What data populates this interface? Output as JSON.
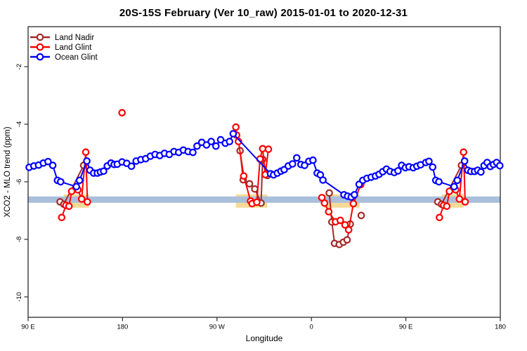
{
  "chart_data": {
    "type": "line",
    "title": "20S-15S February (Ver 10_raw)   2015-01-01 to 2020-12-31",
    "xlabel": "Longitude",
    "ylabel": "XCO2 - MLO trend (ppm)",
    "x_domain": [
      90,
      540
    ],
    "y_domain": [
      -0.61,
      -10.71
    ],
    "grid": false,
    "x_ticks": [
      {
        "value": 90,
        "label": "90 E"
      },
      {
        "value": 180,
        "label": "180"
      },
      {
        "value": 270,
        "label": "90 W"
      },
      {
        "value": 360,
        "label": "0"
      },
      {
        "value": 450,
        "label": "90 E"
      },
      {
        "value": 540,
        "label": "180"
      }
    ],
    "y_ticks": [
      {
        "value": -2,
        "label": "-2"
      },
      {
        "value": -4,
        "label": "-4"
      },
      {
        "value": -6,
        "label": "-6"
      },
      {
        "value": -8,
        "label": "-8"
      },
      {
        "value": -10,
        "label": "-10"
      }
    ],
    "reference_band": {
      "color": "#A9BFDC",
      "y_from": -6.51,
      "y_to": -6.73,
      "x_from": 90,
      "x_to": 540
    },
    "highlight_band": {
      "color": "#F6DB96",
      "y_from": -6.44,
      "y_to": -6.9,
      "segments": [
        [
          124,
          148
        ],
        [
          288,
          318
        ],
        [
          371,
          406
        ],
        [
          484,
          505
        ]
      ]
    },
    "legend": {
      "position": "top-left",
      "entries": [
        "Land Nadir",
        "Land Glint",
        "Ocean Glint"
      ]
    },
    "series": [
      {
        "name": "Land Nadir",
        "color": "#A52A2A",
        "segments": [
          [
            [
              120.5,
              -6.7
            ],
            [
              124,
              -6.78
            ],
            [
              143,
              -5.43
            ]
          ],
          [
            [
              292,
              -4.92
            ],
            [
              295,
              -5.93
            ],
            [
              301,
              -6.07
            ],
            [
              306,
              -6.25
            ],
            [
              312,
              -6.74
            ],
            [
              313.5,
              -5.22
            ],
            [
              318,
              -5.78
            ]
          ],
          [
            [
              377,
              -6.39
            ],
            [
              379.5,
              -7.4
            ],
            [
              382,
              -8.14
            ],
            [
              386.5,
              -8.18
            ],
            [
              390.5,
              -8.1
            ],
            [
              394,
              -8.02
            ],
            [
              397,
              -7.47
            ]
          ],
          [
            [
              407.5,
              -7.17
            ]
          ],
          [
            [
              480.5,
              -6.7
            ],
            [
              484,
              -6.78
            ],
            [
              503,
              -5.43
            ]
          ]
        ]
      },
      {
        "name": "Land Glint",
        "color": "#FF0000",
        "segments": [
          [
            [
              122,
              -7.24
            ],
            [
              126,
              -6.82
            ],
            [
              129,
              -6.85
            ],
            [
              131.5,
              -6.33
            ],
            [
              137.5,
              -6.28
            ],
            [
              141,
              -6.6
            ],
            [
              145,
              -4.97
            ],
            [
              146.5,
              -6.7
            ]
          ],
          [
            [
              179.5,
              -3.6
            ]
          ],
          [
            [
              288,
              -4.1
            ],
            [
              288.7,
              -4.38
            ],
            [
              290.5,
              -4.6
            ],
            [
              295.5,
              -5.8
            ],
            [
              302,
              -6.67
            ],
            [
              303.5,
              -6.76
            ],
            [
              308,
              -6.71
            ],
            [
              311,
              -5.21
            ],
            [
              313.5,
              -4.85
            ],
            [
              316,
              -5.75
            ],
            [
              319,
              -4.87
            ]
          ],
          [
            [
              370,
              -6.55
            ],
            [
              372.5,
              -6.74
            ],
            [
              376.5,
              -7.04
            ],
            [
              383,
              -7.39
            ],
            [
              387.5,
              -7.34
            ],
            [
              392,
              -7.5
            ],
            [
              395.5,
              -7.67
            ],
            [
              400,
              -6.76
            ],
            [
              407,
              -6.1
            ]
          ],
          [
            [
              482,
              -7.24
            ],
            [
              486,
              -6.82
            ],
            [
              489,
              -6.85
            ],
            [
              491.5,
              -6.33
            ],
            [
              497.5,
              -6.28
            ],
            [
              501,
              -6.6
            ],
            [
              505,
              -4.97
            ],
            [
              506.5,
              -6.7
            ]
          ]
        ]
      },
      {
        "name": "Ocean Glint",
        "color": "#0000FF",
        "segments": [
          [
            [
              91,
              -5.5
            ],
            [
              95.5,
              -5.45
            ],
            [
              100,
              -5.42
            ],
            [
              104.5,
              -5.35
            ],
            [
              109,
              -5.3
            ],
            [
              113.5,
              -5.43
            ],
            [
              118,
              -5.95
            ],
            [
              121,
              -6.0
            ],
            [
              136,
              -6.17
            ],
            [
              139,
              -5.95
            ],
            [
              146,
              -5.28
            ],
            [
              149,
              -5.6
            ],
            [
              152.5,
              -5.7
            ],
            [
              156,
              -5.7
            ],
            [
              159,
              -5.66
            ],
            [
              162,
              -5.63
            ],
            [
              165.5,
              -5.45
            ],
            [
              169,
              -5.35
            ],
            [
              172,
              -5.4
            ],
            [
              175,
              -5.39
            ],
            [
              179.5,
              -5.31
            ],
            [
              184,
              -5.36
            ],
            [
              188.5,
              -5.46
            ],
            [
              193,
              -5.28
            ],
            [
              197.5,
              -5.23
            ],
            [
              202,
              -5.2
            ],
            [
              206.5,
              -5.11
            ],
            [
              211,
              -5.05
            ],
            [
              215.5,
              -5.09
            ],
            [
              220,
              -5.01
            ],
            [
              224.5,
              -5.05
            ],
            [
              229,
              -4.95
            ],
            [
              233.5,
              -4.98
            ],
            [
              238,
              -4.9
            ],
            [
              242.5,
              -4.95
            ],
            [
              247,
              -4.98
            ],
            [
              251,
              -4.76
            ],
            [
              255.5,
              -4.63
            ],
            [
              260,
              -4.72
            ],
            [
              264.5,
              -4.6
            ],
            [
              269,
              -4.76
            ],
            [
              273.5,
              -4.54
            ],
            [
              278,
              -4.66
            ],
            [
              282,
              -4.6
            ],
            [
              285.5,
              -4.33
            ],
            [
              321,
              -5.72
            ],
            [
              324,
              -5.76
            ],
            [
              327.5,
              -5.7
            ],
            [
              331,
              -5.63
            ],
            [
              334,
              -5.58
            ],
            [
              338,
              -5.45
            ],
            [
              342,
              -5.38
            ],
            [
              346,
              -5.17
            ],
            [
              350,
              -5.4
            ],
            [
              353.5,
              -5.43
            ],
            [
              357.5,
              -5.29
            ],
            [
              361.5,
              -5.25
            ],
            [
              365.5,
              -5.7
            ],
            [
              368.5,
              -5.76
            ],
            [
              371,
              -5.94
            ],
            [
              391,
              -6.45
            ],
            [
              394.5,
              -6.5
            ],
            [
              398,
              -6.53
            ],
            [
              401,
              -6.45
            ],
            [
              405.5,
              -6.09
            ],
            [
              409,
              -5.95
            ],
            [
              413,
              -5.88
            ],
            [
              417,
              -5.84
            ],
            [
              421,
              -5.8
            ],
            [
              424.5,
              -5.74
            ],
            [
              428,
              -5.65
            ],
            [
              431.5,
              -5.56
            ],
            [
              435,
              -5.64
            ],
            [
              439,
              -5.68
            ],
            [
              442.5,
              -5.62
            ],
            [
              446,
              -5.43
            ],
            [
              449.5,
              -5.51
            ],
            [
              453,
              -5.48
            ],
            [
              457,
              -5.51
            ],
            [
              460.5,
              -5.46
            ],
            [
              464,
              -5.41
            ],
            [
              469,
              -5.33
            ],
            [
              472,
              -5.29
            ],
            [
              475.5,
              -5.49
            ],
            [
              478.5,
              -5.95
            ],
            [
              481.5,
              -6.0
            ],
            [
              496,
              -6.17
            ],
            [
              499,
              -5.95
            ],
            [
              506,
              -5.28
            ],
            [
              509,
              -5.6
            ],
            [
              512,
              -5.64
            ],
            [
              515.5,
              -5.64
            ],
            [
              518.5,
              -5.6
            ],
            [
              521.5,
              -5.66
            ],
            [
              524.5,
              -5.44
            ],
            [
              527.5,
              -5.33
            ],
            [
              530.5,
              -5.47
            ],
            [
              533.5,
              -5.4
            ],
            [
              536.5,
              -5.33
            ],
            [
              539.5,
              -5.44
            ]
          ]
        ]
      }
    ]
  }
}
